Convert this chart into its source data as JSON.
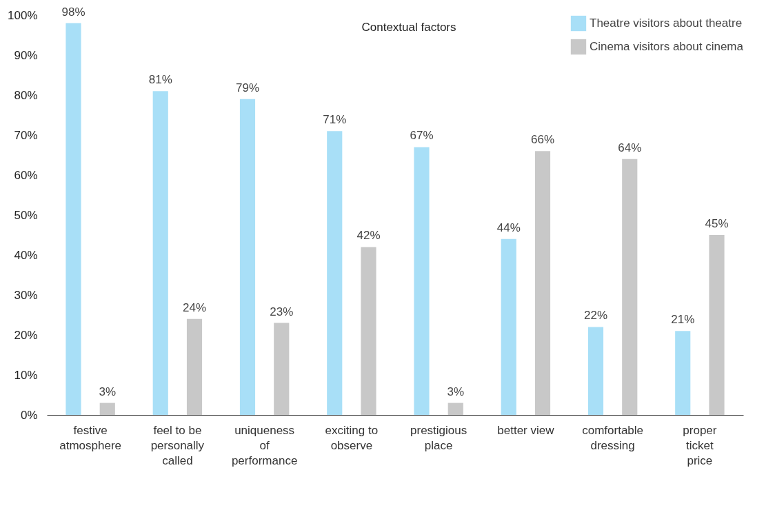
{
  "chart_data": {
    "type": "bar",
    "title": "Contextual factors",
    "categories": [
      "festive atmosphere",
      "feel to be personally called",
      "uniqueness of performance",
      "exciting to observe",
      "prestigious place",
      "better view",
      "comfortable dressing",
      "proper ticket price"
    ],
    "series": [
      {
        "name": "Theatre visitors about theatre",
        "color": "#a8dff7",
        "values": [
          98,
          81,
          79,
          71,
          67,
          44,
          22,
          21
        ],
        "value_labels": [
          "98%",
          "81%",
          "79%",
          "71%",
          "67%",
          "44%",
          "22%",
          "21%"
        ]
      },
      {
        "name": "Cinema visitors about cinema",
        "color": "#c8c8c8",
        "values": [
          3,
          24,
          23,
          42,
          3,
          66,
          64,
          45
        ],
        "value_labels": [
          "3%",
          "24%",
          "23%",
          "42%",
          "3%",
          "66%",
          "64%",
          "45%"
        ]
      }
    ],
    "ylim": [
      0,
      100
    ],
    "yticks": [
      {
        "value": 0,
        "label": "0%"
      },
      {
        "value": 10,
        "label": "10%"
      },
      {
        "value": 20,
        "label": "20%"
      },
      {
        "value": 30,
        "label": "30%"
      },
      {
        "value": 40,
        "label": "40%"
      },
      {
        "value": 50,
        "label": "50%"
      },
      {
        "value": 60,
        "label": "60%"
      },
      {
        "value": 70,
        "label": "70%"
      },
      {
        "value": 80,
        "label": "80%"
      },
      {
        "value": 90,
        "label": "90%"
      },
      {
        "value": 100,
        "label": "100%"
      }
    ],
    "grid": false,
    "legend": "top right"
  }
}
